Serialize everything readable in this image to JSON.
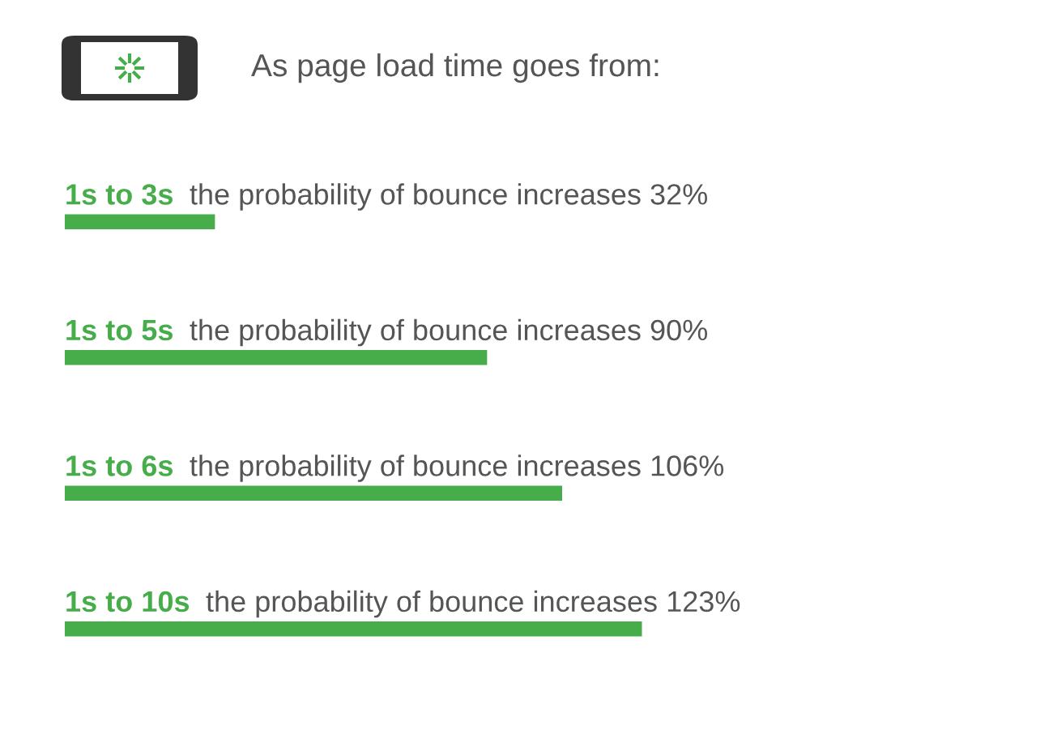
{
  "chart_data": {
    "type": "bar",
    "orientation": "horizontal",
    "title": "As page load time goes from:",
    "categories": [
      "1s to 3s",
      "1s to 5s",
      "1s to 6s",
      "1s to 10s"
    ],
    "values": [
      32,
      90,
      106,
      123
    ],
    "value_labels": [
      "the probability of bounce increases 32%",
      "the probability of bounce increases 90%",
      "the probability of bounce increases 106%",
      "the probability of bounce increases 123%"
    ],
    "color": "#46ad4a"
  }
}
